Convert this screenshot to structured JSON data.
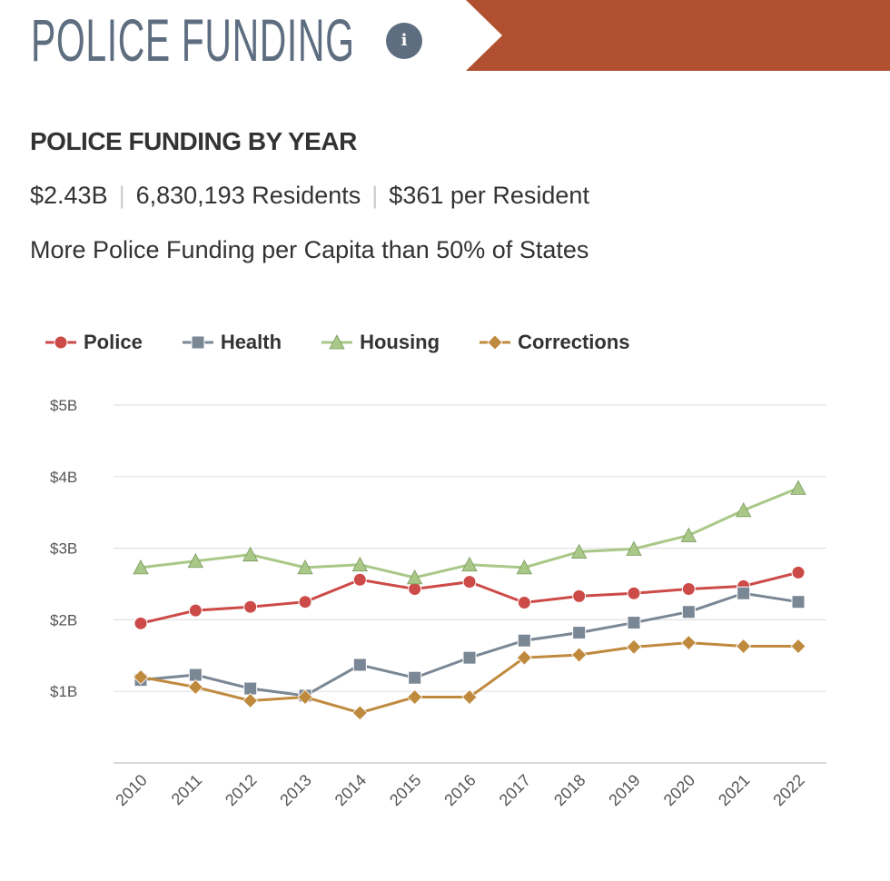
{
  "header": {
    "title": "POLICE FUNDING",
    "info_icon": "info-icon",
    "info_glyph": "i",
    "banner_color": "#b05030"
  },
  "subtitle": "POLICE FUNDING BY YEAR",
  "stats": {
    "total": "$2.43B",
    "residents": "6,830,193 Residents",
    "per_resident": "$361 per Resident"
  },
  "comparison": "More Police Funding per Capita than 50% of States",
  "chart_data": {
    "type": "line",
    "x": [
      "2010",
      "2011",
      "2012",
      "2013",
      "2014",
      "2015",
      "2016",
      "2017",
      "2018",
      "2019",
      "2020",
      "2021",
      "2022"
    ],
    "ylim": [
      0,
      5
    ],
    "yticks": [
      {
        "v": 1,
        "label": "$1B"
      },
      {
        "v": 2,
        "label": "$2B"
      },
      {
        "v": 3,
        "label": "$3B"
      },
      {
        "v": 4,
        "label": "$4B"
      },
      {
        "v": 5,
        "label": "$5B"
      }
    ],
    "grid": true,
    "legend_position": "top-left",
    "series": [
      {
        "name": "Police",
        "color": "#cc4b48",
        "marker": "circle",
        "values": [
          1.95,
          2.13,
          2.18,
          2.25,
          2.56,
          2.43,
          2.53,
          2.24,
          2.33,
          2.37,
          2.43,
          2.47,
          2.66
        ]
      },
      {
        "name": "Health",
        "color": "#7a8794",
        "marker": "square",
        "values": [
          1.16,
          1.23,
          1.04,
          0.94,
          1.37,
          1.19,
          1.47,
          1.71,
          1.82,
          1.96,
          2.11,
          2.37,
          2.25
        ]
      },
      {
        "name": "Housing",
        "color": "#a9c887",
        "marker": "triangle",
        "values": [
          2.73,
          2.82,
          2.91,
          2.73,
          2.77,
          2.59,
          2.77,
          2.73,
          2.95,
          2.99,
          3.18,
          3.53,
          3.84
        ]
      },
      {
        "name": "Corrections",
        "color": "#c08a3e",
        "marker": "diamond",
        "values": [
          1.2,
          1.06,
          0.87,
          0.92,
          0.7,
          0.92,
          0.92,
          1.47,
          1.51,
          1.62,
          1.68,
          1.63,
          1.63
        ]
      }
    ]
  }
}
